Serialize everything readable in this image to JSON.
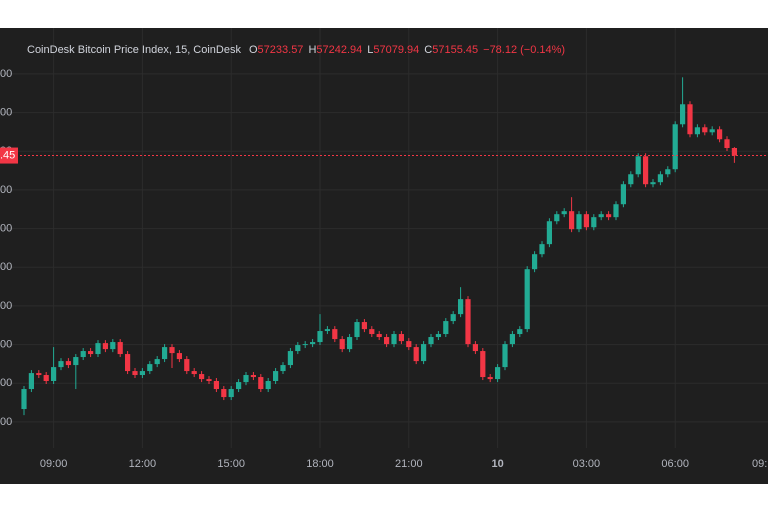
{
  "chart_data": {
    "type": "candlestick",
    "title": "CoinDesk Bitcoin Price Index, 15, CoinDesk",
    "ohlc_letters": {
      "open": "O",
      "high": "H",
      "low": "L",
      "close": "C"
    },
    "change_text": "−78.12 (−0.14%)",
    "last_price_label": ".45",
    "x_edge_label": "09:",
    "up_color": "#22ab94",
    "down_color": "#f23645",
    "grid": true,
    "ylim": [
      54130,
      58475
    ],
    "yticks": [
      {
        "value": 58000,
        "label": "00"
      },
      {
        "value": 57600,
        "label": "00"
      },
      {
        "value": 57200,
        "label": "00"
      },
      {
        "value": 56800,
        "label": "00"
      },
      {
        "value": 56400,
        "label": "00"
      },
      {
        "value": 56000,
        "label": "00"
      },
      {
        "value": 55600,
        "label": "00"
      },
      {
        "value": 55200,
        "label": "00"
      },
      {
        "value": 54800,
        "label": "00"
      },
      {
        "value": 54400,
        "label": "00"
      }
    ],
    "categories": [
      null,
      null,
      null,
      null,
      "09:00",
      null,
      null,
      null,
      null,
      null,
      null,
      null,
      null,
      null,
      null,
      null,
      "12:00",
      null,
      null,
      null,
      null,
      null,
      null,
      null,
      null,
      null,
      null,
      null,
      "15:00",
      null,
      null,
      null,
      null,
      null,
      null,
      null,
      null,
      null,
      null,
      null,
      "18:00",
      null,
      null,
      null,
      null,
      null,
      null,
      null,
      null,
      null,
      null,
      null,
      "21:00",
      null,
      null,
      null,
      null,
      null,
      null,
      null,
      null,
      null,
      null,
      null,
      "10",
      null,
      null,
      null,
      null,
      null,
      null,
      null,
      null,
      null,
      null,
      null,
      "03:00",
      null,
      null,
      null,
      null,
      null,
      null,
      null,
      null,
      null,
      null,
      null,
      "06:00",
      null,
      null,
      null,
      null,
      null,
      null,
      null,
      null
    ],
    "open": [
      54533,
      54740,
      54905,
      54885,
      54823,
      54967,
      55029,
      54988,
      55071,
      55133,
      55102,
      55215,
      55153,
      55226,
      55102,
      54926,
      54885,
      54926,
      54998,
      55050,
      55174,
      55112,
      55050,
      54926,
      54895,
      54843,
      54823,
      54740,
      54657,
      54740,
      54812,
      54885,
      54864,
      54740,
      54823,
      54926,
      54988,
      55133,
      55195,
      55205,
      55226,
      55340,
      55360,
      55257,
      55153,
      55278,
      55433,
      55360,
      55309,
      55278,
      55205,
      55309,
      55236,
      55174,
      55029,
      55205,
      55278,
      55309,
      55443,
      55515,
      55670,
      55205,
      55133,
      54864,
      54843,
      54967,
      55205,
      55309,
      55360,
      55980,
      56135,
      56239,
      56476,
      56549,
      56580,
      56394,
      56549,
      56414,
      56518,
      56549,
      56518,
      56652,
      56859,
      56962,
      57148,
      56859,
      56880,
      56962,
      57014,
      57479,
      57686,
      57376,
      57448,
      57396,
      57427,
      57324,
      57233.57
    ],
    "high": [
      54771,
      54936,
      54936,
      54916,
      55174,
      55060,
      55060,
      55102,
      55164,
      55164,
      55246,
      55246,
      55257,
      55257,
      55133,
      54957,
      54957,
      55029,
      55081,
      55205,
      55205,
      55143,
      55081,
      54957,
      54926,
      54874,
      54854,
      54771,
      54771,
      54843,
      54916,
      54916,
      54895,
      54854,
      54957,
      55019,
      55164,
      55226,
      55236,
      55257,
      55515,
      55391,
      55391,
      55288,
      55309,
      55464,
      55464,
      55391,
      55340,
      55309,
      55340,
      55340,
      55267,
      55205,
      55236,
      55309,
      55340,
      55474,
      55546,
      55794,
      55701,
      55236,
      55164,
      54895,
      54998,
      55236,
      55340,
      55391,
      56011,
      56166,
      56270,
      56507,
      56580,
      56611,
      56725,
      56580,
      56580,
      56549,
      56580,
      56580,
      56683,
      56890,
      56993,
      57179,
      57179,
      56911,
      56993,
      57045,
      57510,
      57965,
      57717,
      57479,
      57479,
      57458,
      57458,
      57355,
      57242.94
    ],
    "low": [
      54470,
      54709,
      54854,
      54792,
      54792,
      54936,
      54957,
      54740,
      55040,
      55071,
      55071,
      55122,
      55122,
      55071,
      54895,
      54854,
      54854,
      54895,
      54967,
      55019,
      54957,
      55019,
      54895,
      54864,
      54812,
      54792,
      54709,
      54626,
      54626,
      54709,
      54781,
      54833,
      54709,
      54709,
      54792,
      54895,
      54957,
      55102,
      55164,
      55174,
      55195,
      55309,
      55226,
      55122,
      55122,
      55247,
      55329,
      55278,
      55247,
      55174,
      55174,
      55205,
      55143,
      54998,
      54998,
      55174,
      55247,
      55278,
      55412,
      55484,
      55174,
      55102,
      54833,
      54812,
      54812,
      54936,
      55174,
      55278,
      55329,
      55949,
      56104,
      56208,
      56445,
      56518,
      56363,
      56363,
      56383,
      56383,
      56487,
      56487,
      56487,
      56621,
      56828,
      56931,
      56828,
      56828,
      56849,
      56931,
      56983,
      57448,
      57345,
      57345,
      57365,
      57365,
      57293,
      57202,
      57079.94
    ],
    "close": [
      54740,
      54905,
      54885,
      54823,
      54967,
      55029,
      54988,
      55071,
      55133,
      55102,
      55215,
      55153,
      55226,
      55102,
      54926,
      54885,
      54926,
      54998,
      55050,
      55174,
      55112,
      55050,
      54926,
      54895,
      54843,
      54823,
      54740,
      54657,
      54740,
      54812,
      54885,
      54864,
      54740,
      54823,
      54926,
      54988,
      55133,
      55195,
      55205,
      55226,
      55340,
      55360,
      55257,
      55153,
      55278,
      55433,
      55360,
      55309,
      55278,
      55205,
      55309,
      55236,
      55174,
      55029,
      55205,
      55278,
      55309,
      55443,
      55515,
      55670,
      55205,
      55133,
      54864,
      54843,
      54967,
      55205,
      55309,
      55360,
      55980,
      56135,
      56239,
      56476,
      56549,
      56580,
      56394,
      56549,
      56414,
      56518,
      56549,
      56518,
      56652,
      56859,
      56962,
      57148,
      56859,
      56880,
      56962,
      57014,
      57479,
      57686,
      57376,
      57448,
      57396,
      57427,
      57324,
      57233.57,
      57155.45
    ]
  }
}
